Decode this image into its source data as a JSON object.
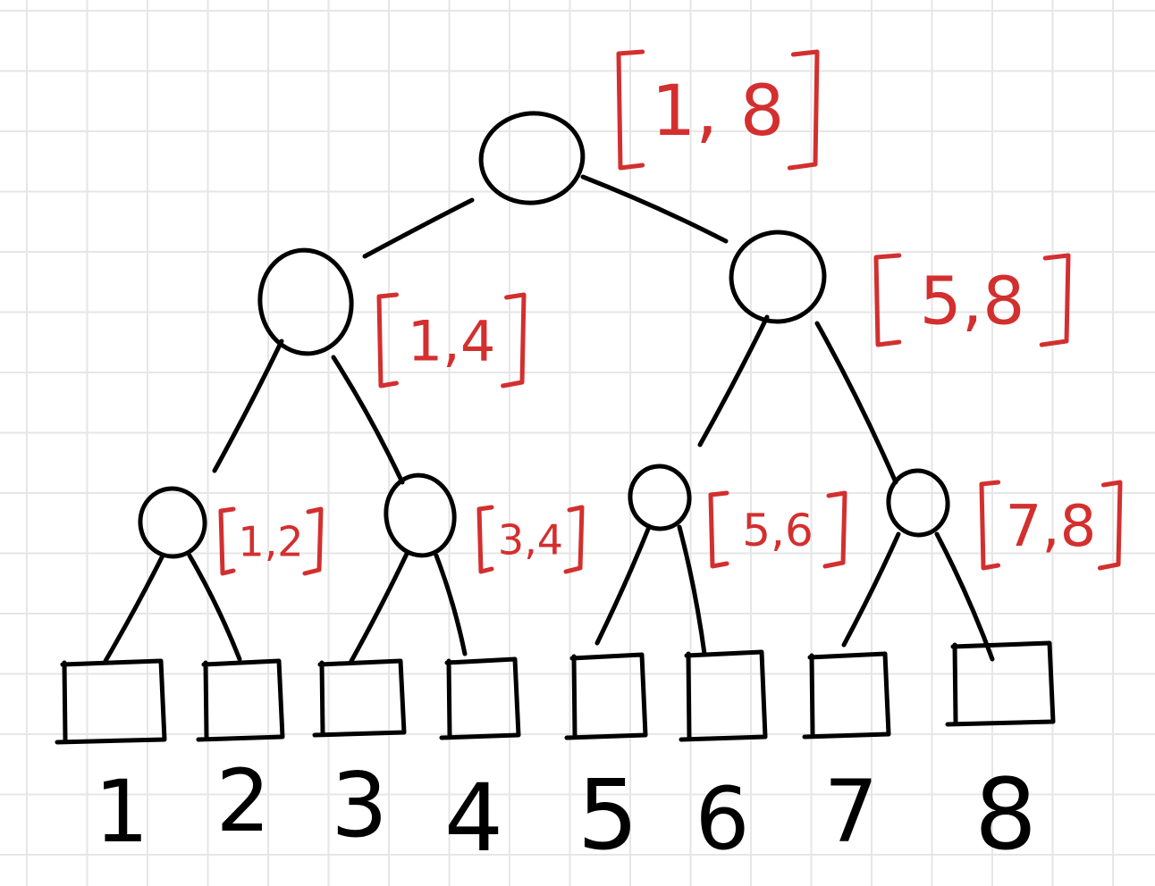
{
  "diagram": {
    "colors": {
      "background": "#ffffff",
      "grid": "#e6e6e6",
      "ink": "#000000",
      "range": "#d32f2f"
    },
    "nodes": [
      {
        "id": "root",
        "range": "1, 8"
      },
      {
        "id": "n-1-4",
        "range": "1,4"
      },
      {
        "id": "n-5-8",
        "range": "5,8"
      },
      {
        "id": "n-1-2",
        "range": "1,2"
      },
      {
        "id": "n-3-4",
        "range": "3,4"
      },
      {
        "id": "n-5-6",
        "range": "5,6"
      },
      {
        "id": "n-7-8",
        "range": "7,8"
      }
    ],
    "leaves": [
      "1",
      "2",
      "3",
      "4",
      "5",
      "6",
      "7",
      "8"
    ]
  }
}
